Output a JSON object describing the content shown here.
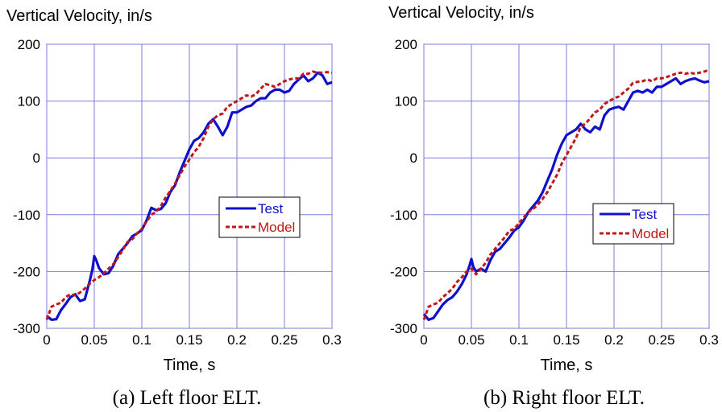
{
  "colors": {
    "test": "#1010cc",
    "model": "#c01818",
    "grid": "#7b7bdc"
  },
  "chart_data": [
    {
      "type": "line",
      "ylabel": "Vertical Velocity, in/s",
      "xlabel": "Time, s",
      "caption": "(a) Left floor ELT.",
      "xlim": [
        0,
        0.3
      ],
      "ylim": [
        -300,
        200
      ],
      "xticks": [
        "0",
        "0.05",
        "0.1",
        "0.15",
        "0.2",
        "0.25",
        "0.3"
      ],
      "yticks": [
        "200",
        "100",
        "0",
        "-100",
        "-200",
        "-300"
      ],
      "grid": true,
      "legend": "center-right",
      "series": [
        {
          "name": "Test",
          "style": "solid",
          "x": [
            0,
            0.005,
            0.01,
            0.015,
            0.02,
            0.025,
            0.03,
            0.035,
            0.04,
            0.045,
            0.048,
            0.05,
            0.052,
            0.055,
            0.06,
            0.065,
            0.07,
            0.075,
            0.08,
            0.085,
            0.09,
            0.095,
            0.1,
            0.105,
            0.11,
            0.115,
            0.12,
            0.125,
            0.13,
            0.135,
            0.14,
            0.145,
            0.15,
            0.155,
            0.16,
            0.165,
            0.17,
            0.175,
            0.18,
            0.185,
            0.19,
            0.195,
            0.2,
            0.205,
            0.21,
            0.215,
            0.22,
            0.225,
            0.23,
            0.235,
            0.24,
            0.245,
            0.25,
            0.255,
            0.26,
            0.265,
            0.27,
            0.275,
            0.28,
            0.285,
            0.29,
            0.295,
            0.3
          ],
          "y": [
            -278,
            -285,
            -284,
            -268,
            -257,
            -245,
            -240,
            -252,
            -249,
            -218,
            -197,
            -173,
            -180,
            -194,
            -205,
            -203,
            -190,
            -170,
            -160,
            -150,
            -138,
            -133,
            -127,
            -110,
            -88,
            -92,
            -90,
            -80,
            -60,
            -48,
            -25,
            -5,
            15,
            30,
            35,
            45,
            60,
            68,
            55,
            40,
            55,
            80,
            80,
            85,
            90,
            92,
            100,
            105,
            105,
            115,
            120,
            120,
            115,
            118,
            130,
            138,
            145,
            135,
            140,
            150,
            145,
            130,
            133
          ]
        },
        {
          "name": "Model",
          "style": "dashed",
          "x": [
            0,
            0.005,
            0.01,
            0.015,
            0.02,
            0.025,
            0.03,
            0.035,
            0.04,
            0.045,
            0.05,
            0.055,
            0.06,
            0.065,
            0.07,
            0.075,
            0.08,
            0.085,
            0.09,
            0.095,
            0.1,
            0.105,
            0.11,
            0.115,
            0.12,
            0.125,
            0.13,
            0.135,
            0.14,
            0.145,
            0.15,
            0.155,
            0.16,
            0.165,
            0.17,
            0.175,
            0.18,
            0.185,
            0.19,
            0.195,
            0.2,
            0.205,
            0.21,
            0.215,
            0.22,
            0.225,
            0.23,
            0.235,
            0.24,
            0.245,
            0.25,
            0.255,
            0.26,
            0.265,
            0.27,
            0.275,
            0.28,
            0.285,
            0.29,
            0.295,
            0.3
          ],
          "y": [
            -285,
            -262,
            -258,
            -255,
            -245,
            -240,
            -242,
            -237,
            -230,
            -222,
            -215,
            -210,
            -203,
            -195,
            -187,
            -175,
            -162,
            -148,
            -143,
            -133,
            -125,
            -112,
            -100,
            -95,
            -85,
            -70,
            -58,
            -45,
            -30,
            -15,
            -3,
            10,
            20,
            35,
            55,
            68,
            75,
            78,
            90,
            95,
            100,
            105,
            110,
            108,
            112,
            122,
            130,
            128,
            125,
            130,
            135,
            138,
            140,
            140,
            148,
            148,
            152,
            150,
            150,
            151,
            150
          ]
        }
      ]
    },
    {
      "type": "line",
      "ylabel": "Vertical Velocity, in/s",
      "xlabel": "Time, s",
      "caption": "(b) Right floor ELT.",
      "xlim": [
        0,
        0.3
      ],
      "ylim": [
        -300,
        200
      ],
      "xticks": [
        "0",
        "0.05",
        "0.1",
        "0.15",
        "0.2",
        "0.25",
        "0.3"
      ],
      "yticks": [
        "200",
        "100",
        "0",
        "-100",
        "-200",
        "-300"
      ],
      "grid": true,
      "legend": "center-right",
      "series": [
        {
          "name": "Test",
          "style": "solid",
          "x": [
            0,
            0.005,
            0.01,
            0.015,
            0.02,
            0.025,
            0.03,
            0.035,
            0.04,
            0.045,
            0.048,
            0.05,
            0.052,
            0.055,
            0.06,
            0.065,
            0.07,
            0.075,
            0.08,
            0.085,
            0.09,
            0.095,
            0.1,
            0.105,
            0.11,
            0.115,
            0.12,
            0.125,
            0.13,
            0.135,
            0.14,
            0.145,
            0.15,
            0.155,
            0.16,
            0.165,
            0.17,
            0.175,
            0.18,
            0.185,
            0.19,
            0.195,
            0.2,
            0.205,
            0.21,
            0.215,
            0.22,
            0.225,
            0.23,
            0.235,
            0.24,
            0.245,
            0.25,
            0.255,
            0.26,
            0.265,
            0.27,
            0.275,
            0.28,
            0.285,
            0.29,
            0.295,
            0.3
          ],
          "y": [
            -275,
            -285,
            -282,
            -270,
            -258,
            -250,
            -245,
            -235,
            -222,
            -205,
            -190,
            -178,
            -192,
            -200,
            -195,
            -200,
            -180,
            -165,
            -160,
            -150,
            -140,
            -128,
            -122,
            -110,
            -95,
            -85,
            -75,
            -60,
            -40,
            -20,
            5,
            25,
            40,
            45,
            50,
            60,
            50,
            45,
            55,
            50,
            75,
            85,
            88,
            90,
            85,
            100,
            115,
            118,
            115,
            120,
            115,
            125,
            125,
            130,
            135,
            140,
            130,
            135,
            138,
            140,
            136,
            133,
            135
          ]
        },
        {
          "name": "Model",
          "style": "dashed",
          "x": [
            0,
            0.005,
            0.01,
            0.015,
            0.02,
            0.025,
            0.03,
            0.035,
            0.04,
            0.045,
            0.05,
            0.055,
            0.06,
            0.065,
            0.07,
            0.075,
            0.08,
            0.085,
            0.09,
            0.095,
            0.1,
            0.105,
            0.11,
            0.115,
            0.12,
            0.125,
            0.13,
            0.135,
            0.14,
            0.145,
            0.15,
            0.155,
            0.16,
            0.165,
            0.17,
            0.175,
            0.18,
            0.185,
            0.19,
            0.195,
            0.2,
            0.205,
            0.21,
            0.215,
            0.22,
            0.225,
            0.23,
            0.235,
            0.24,
            0.245,
            0.25,
            0.255,
            0.26,
            0.265,
            0.27,
            0.275,
            0.28,
            0.285,
            0.29,
            0.295,
            0.3
          ],
          "y": [
            -285,
            -262,
            -258,
            -255,
            -245,
            -238,
            -230,
            -218,
            -210,
            -200,
            -195,
            -205,
            -195,
            -185,
            -170,
            -160,
            -150,
            -140,
            -128,
            -125,
            -115,
            -105,
            -95,
            -90,
            -82,
            -72,
            -60,
            -45,
            -30,
            -10,
            5,
            20,
            35,
            55,
            60,
            70,
            80,
            85,
            95,
            100,
            105,
            108,
            115,
            122,
            132,
            134,
            135,
            138,
            135,
            140,
            140,
            142,
            145,
            148,
            150,
            148,
            150,
            148,
            150,
            152,
            155
          ]
        }
      ]
    }
  ]
}
